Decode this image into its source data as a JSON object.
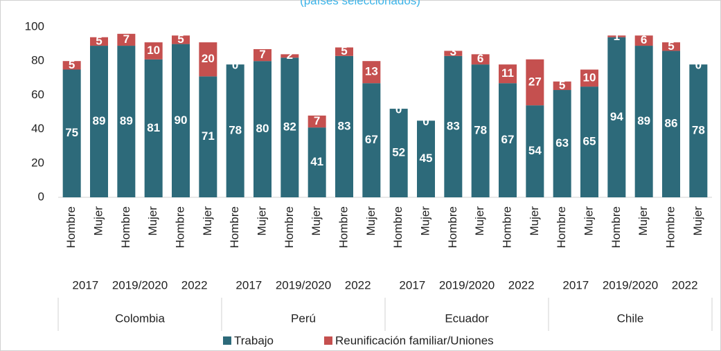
{
  "chart_data": {
    "type": "stacked_bar",
    "subtitle": "(países seleccionados)",
    "categories": [
      "Hombre",
      "Mujer",
      "Hombre",
      "Mujer",
      "Hombre",
      "Mujer",
      "Hombre",
      "Mujer",
      "Hombre",
      "Mujer",
      "Hombre",
      "Mujer",
      "Hombre",
      "Mujer",
      "Hombre",
      "Mujer",
      "Hombre",
      "Mujer",
      "Hombre",
      "Mujer",
      "Hombre",
      "Mujer",
      "Hombre",
      "Mujer"
    ],
    "year_groups": [
      "2017",
      "2019/2020",
      "2022",
      "2017",
      "2019/2020",
      "2022",
      "2017",
      "2019/2020",
      "2022",
      "2017",
      "2019/2020",
      "2022"
    ],
    "country_groups": [
      "Colombia",
      "Perú",
      "Ecuador",
      "Chile"
    ],
    "series": [
      {
        "name": "Trabajo",
        "color": "#2d6a7a",
        "values": [
          75,
          89,
          89,
          81,
          90,
          71,
          78,
          80,
          82,
          41,
          83,
          67,
          52,
          45,
          83,
          78,
          67,
          54,
          63,
          65,
          94,
          89,
          86,
          78
        ]
      },
      {
        "name": "Reunificación familiar/Uniones",
        "color": "#c5504f",
        "values": [
          5,
          5,
          7,
          10,
          5,
          20,
          0,
          7,
          2,
          7,
          5,
          13,
          0,
          0,
          3,
          6,
          11,
          27,
          5,
          10,
          1,
          6,
          5,
          0
        ]
      }
    ],
    "ylim": [
      0,
      100
    ],
    "yticks": [
      0,
      20,
      40,
      60,
      80,
      100
    ],
    "legend": "bottom"
  }
}
